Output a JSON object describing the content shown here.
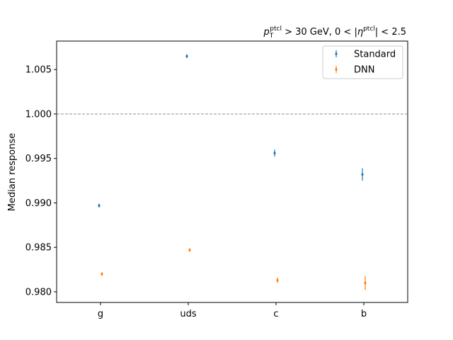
{
  "chart_data": {
    "type": "scatter",
    "categories": [
      "g",
      "uds",
      "c",
      "b"
    ],
    "ylabel": "Median response",
    "xlabel": "",
    "ylim": [
      0.9788,
      1.0082
    ],
    "yticks": [
      0.98,
      0.985,
      0.99,
      0.995,
      1.0,
      1.005
    ],
    "ytick_labels": [
      "0.980",
      "0.985",
      "0.990",
      "0.995",
      "1.000",
      "1.005"
    ],
    "reference_line": {
      "y": 1.0,
      "style": "dashed",
      "color": "#808080"
    },
    "annotation_parts": {
      "p": "p",
      "T": "T",
      "ptcl1": "ptcl",
      "cut1": " > 30 GeV, 0 < |",
      "eta": "η",
      "ptcl2": "ptcl",
      "cut2": "| < 2.5"
    },
    "legend": {
      "placement": "top-right"
    },
    "series": [
      {
        "name": "Standard",
        "color": "#1f77b4",
        "values": [
          0.9897,
          1.0065,
          0.9956,
          0.9932
        ],
        "errors": [
          0.0002,
          0.0002,
          0.0004,
          0.0007
        ]
      },
      {
        "name": "DNN",
        "color": "#ff7f0e",
        "values": [
          0.982,
          0.9847,
          0.9813,
          0.981
        ],
        "errors": [
          0.0002,
          0.0002,
          0.0003,
          0.0008
        ]
      }
    ]
  }
}
